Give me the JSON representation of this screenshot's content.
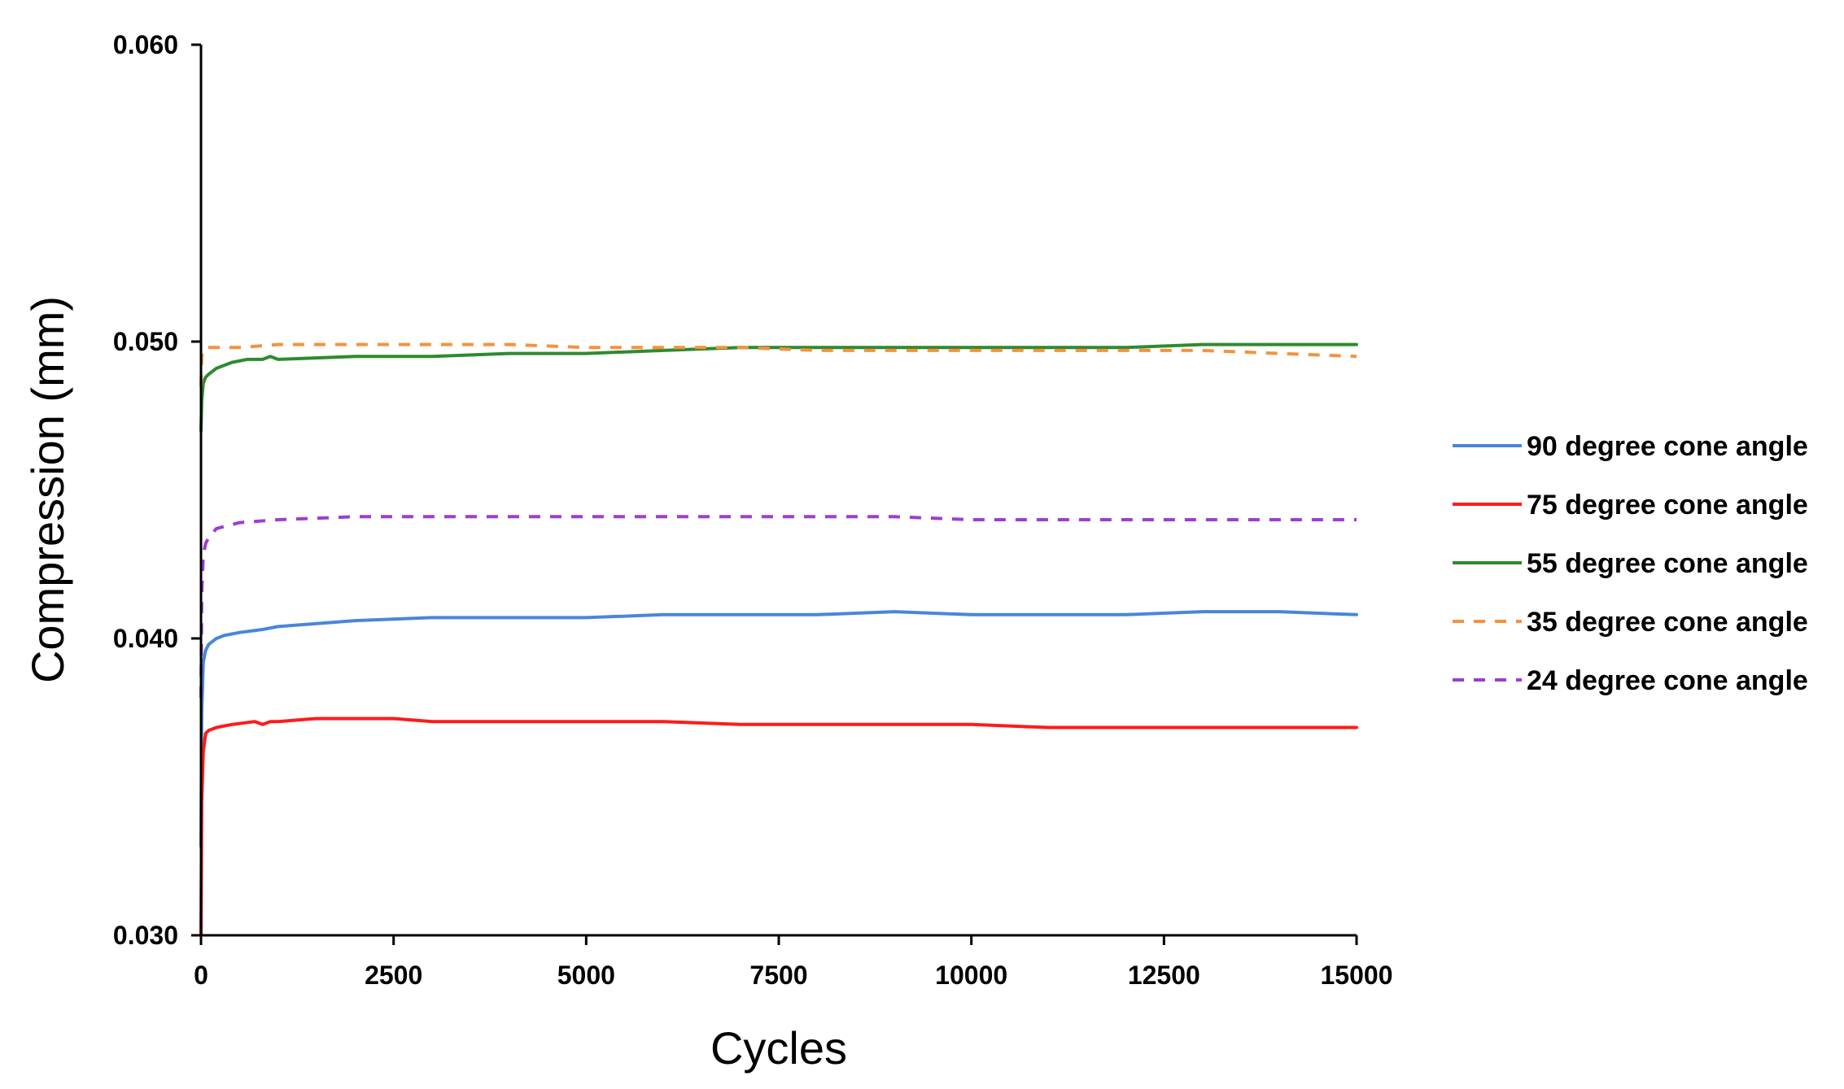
{
  "chart_data": {
    "type": "line",
    "title": "",
    "xlabel": "Cycles",
    "ylabel": "Compression (mm)",
    "xlim": [
      0,
      15000
    ],
    "ylim": [
      0.03,
      0.06
    ],
    "x_ticks": [
      "0",
      "2500",
      "5000",
      "7500",
      "10000",
      "12500",
      "15000"
    ],
    "x_tick_values": [
      0,
      2500,
      5000,
      7500,
      10000,
      12500,
      15000
    ],
    "y_ticks": [
      "0.030",
      "0.040",
      "0.050",
      "0.060"
    ],
    "y_tick_values": [
      0.03,
      0.04,
      0.05,
      0.06
    ],
    "grid": false,
    "legend_position": "right",
    "series": [
      {
        "name": "90 degree cone angle",
        "color": "#4a86d8",
        "dashed": false,
        "x": [
          0,
          10,
          30,
          60,
          100,
          200,
          300,
          500,
          800,
          1000,
          2000,
          3000,
          4000,
          5000,
          6000,
          7000,
          8000,
          9000,
          10000,
          11000,
          12000,
          13000,
          14000,
          15000
        ],
        "y": [
          0.033,
          0.0375,
          0.0392,
          0.0396,
          0.0398,
          0.04,
          0.0401,
          0.0402,
          0.0403,
          0.0404,
          0.0406,
          0.0407,
          0.0407,
          0.0407,
          0.0408,
          0.0408,
          0.0408,
          0.0409,
          0.0408,
          0.0408,
          0.0408,
          0.0409,
          0.0409,
          0.0408
        ]
      },
      {
        "name": "75 degree cone angle",
        "color": "#ff1a1a",
        "dashed": false,
        "x": [
          0,
          10,
          30,
          60,
          100,
          200,
          400,
          700,
          800,
          900,
          1000,
          1500,
          2000,
          2500,
          3000,
          4000,
          5000,
          6000,
          7000,
          8000,
          9000,
          10000,
          11000,
          12000,
          13000,
          14000,
          15000
        ],
        "y": [
          0.03,
          0.0345,
          0.0362,
          0.0368,
          0.0369,
          0.037,
          0.0371,
          0.0372,
          0.0371,
          0.0372,
          0.0372,
          0.0373,
          0.0373,
          0.0373,
          0.0372,
          0.0372,
          0.0372,
          0.0372,
          0.0371,
          0.0371,
          0.0371,
          0.0371,
          0.037,
          0.037,
          0.037,
          0.037,
          0.037
        ]
      },
      {
        "name": "55 degree cone angle",
        "color": "#2f8a2f",
        "dashed": false,
        "x": [
          0,
          10,
          30,
          60,
          100,
          200,
          400,
          600,
          800,
          900,
          1000,
          2000,
          3000,
          4000,
          5000,
          6000,
          7000,
          8000,
          9000,
          10000,
          11000,
          12000,
          13000,
          14000,
          15000
        ],
        "y": [
          0.047,
          0.048,
          0.0486,
          0.0488,
          0.0489,
          0.0491,
          0.0493,
          0.0494,
          0.0494,
          0.0495,
          0.0494,
          0.0495,
          0.0495,
          0.0496,
          0.0496,
          0.0497,
          0.0498,
          0.0498,
          0.0498,
          0.0498,
          0.0498,
          0.0498,
          0.0499,
          0.0499,
          0.0499
        ]
      },
      {
        "name": "35 degree cone angle",
        "color": "#f5923e",
        "dashed": true,
        "x": [
          0,
          10,
          30,
          60,
          100,
          200,
          500,
          1000,
          2000,
          3000,
          4000,
          5000,
          6000,
          7000,
          8000,
          9000,
          10000,
          11000,
          12000,
          13000,
          14000,
          15000
        ],
        "y": [
          0.0485,
          0.0495,
          0.0497,
          0.0498,
          0.0498,
          0.0498,
          0.0498,
          0.0499,
          0.0499,
          0.0499,
          0.0499,
          0.0498,
          0.0498,
          0.0498,
          0.0497,
          0.0497,
          0.0497,
          0.0497,
          0.0497,
          0.0497,
          0.0496,
          0.0495
        ]
      },
      {
        "name": "24 degree cone angle",
        "color": "#9b3fcf",
        "dashed": true,
        "x": [
          0,
          10,
          30,
          60,
          100,
          200,
          500,
          1000,
          2000,
          3000,
          4000,
          5000,
          6000,
          7000,
          8000,
          9000,
          10000,
          11000,
          12000,
          13000,
          14000,
          15000
        ],
        "y": [
          0.038,
          0.0415,
          0.0428,
          0.0432,
          0.0434,
          0.0437,
          0.0439,
          0.044,
          0.0441,
          0.0441,
          0.0441,
          0.0441,
          0.0441,
          0.0441,
          0.0441,
          0.0441,
          0.044,
          0.044,
          0.044,
          0.044,
          0.044,
          0.044
        ]
      }
    ]
  }
}
